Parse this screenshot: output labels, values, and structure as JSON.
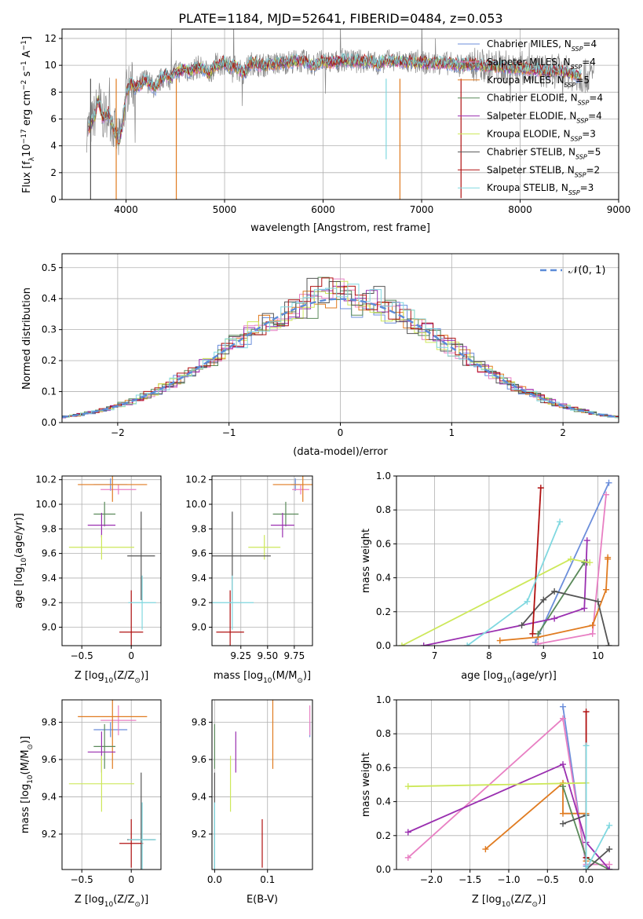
{
  "figure_title": "PLATE=1184, MJD=52641, FIBERID=0484, z=0.053",
  "models": [
    {
      "label": "Chabrier MILES, N",
      "sub": "SSP",
      "tail": "=4",
      "color": "#6b8edb"
    },
    {
      "label": "Salpeter MILES, N",
      "sub": "SSP",
      "tail": "=4",
      "color": "#e87fc3"
    },
    {
      "label": "Kroupa MILES, N",
      "sub": "SSP",
      "tail": "=5",
      "color": "#e07b20"
    },
    {
      "label": "Chabrier ELODIE, N",
      "sub": "SSP",
      "tail": "=4",
      "color": "#5a8a5a"
    },
    {
      "label": "Salpeter ELODIE, N",
      "sub": "SSP",
      "tail": "=4",
      "color": "#9a2fb0"
    },
    {
      "label": "Kroupa ELODIE, N",
      "sub": "SSP",
      "tail": "=3",
      "color": "#cde85a"
    },
    {
      "label": "Chabrier STELIB, N",
      "sub": "SSP",
      "tail": "=5",
      "color": "#555555"
    },
    {
      "label": "Salpeter STELIB, N",
      "sub": "SSP",
      "tail": "=2",
      "color": "#b01010"
    },
    {
      "label": "Kroupa STELIB, N",
      "sub": "SSP",
      "tail": "=3",
      "color": "#80d8e0"
    }
  ],
  "chart_data": [
    {
      "id": "spectrum",
      "type": "line",
      "xlabel": "wavelength [Angstrom, rest frame]",
      "ylabel_main": "Flux [f",
      "ylabel_sub": "λ",
      "ylabel_rest": "10",
      "ylabel_exp1": "−17",
      "ylabel_mid": " erg cm",
      "ylabel_exp2": "−2",
      "ylabel_mid2": " s",
      "ylabel_exp3": "−1",
      "ylabel_mid3": " A",
      "ylabel_exp4": "−1",
      "ylabel_end": "]",
      "xlim": [
        3350,
        9000
      ],
      "ylim": [
        0,
        12.7
      ],
      "xticks": [
        4000,
        5000,
        6000,
        7000,
        8000,
        9000
      ],
      "yticks": [
        0,
        2,
        4,
        6,
        8,
        10,
        12
      ],
      "data_color": "#888888",
      "model_profile": [
        [
          3620,
          5.3
        ],
        [
          3680,
          6.2
        ],
        [
          3720,
          7.5
        ],
        [
          3760,
          6.1
        ],
        [
          3820,
          6.5
        ],
        [
          3860,
          5.6
        ],
        [
          3900,
          4.8
        ],
        [
          3930,
          4.3
        ],
        [
          3970,
          5.8
        ],
        [
          4000,
          8.0
        ],
        [
          4050,
          8.6
        ],
        [
          4100,
          8.3
        ],
        [
          4150,
          8.6
        ],
        [
          4200,
          9.0
        ],
        [
          4260,
          8.5
        ],
        [
          4300,
          8.3
        ],
        [
          4350,
          8.9
        ],
        [
          4400,
          9.3
        ],
        [
          4450,
          9.0
        ],
        [
          4500,
          9.5
        ],
        [
          4550,
          9.6
        ],
        [
          4600,
          9.7
        ],
        [
          4650,
          9.5
        ],
        [
          4700,
          9.8
        ],
        [
          4750,
          9.9
        ],
        [
          4800,
          9.6
        ],
        [
          4850,
          9.4
        ],
        [
          4900,
          10.0
        ],
        [
          4950,
          10.1
        ],
        [
          5000,
          10.2
        ],
        [
          5050,
          9.8
        ],
        [
          5100,
          10.0
        ],
        [
          5150,
          9.6
        ],
        [
          5200,
          9.4
        ],
        [
          5250,
          10.1
        ],
        [
          5300,
          10.2
        ],
        [
          5350,
          10.0
        ],
        [
          5400,
          10.0
        ],
        [
          5500,
          10.1
        ],
        [
          5600,
          10.2
        ],
        [
          5700,
          10.3
        ],
        [
          5800,
          10.3
        ],
        [
          5900,
          10.0
        ],
        [
          6000,
          10.3
        ],
        [
          6100,
          10.2
        ],
        [
          6200,
          10.4
        ],
        [
          6300,
          10.3
        ],
        [
          6400,
          10.3
        ],
        [
          6500,
          10.3
        ],
        [
          6560,
          10.0
        ],
        [
          6600,
          10.3
        ],
        [
          6700,
          10.3
        ],
        [
          6800,
          10.3
        ],
        [
          6900,
          10.2
        ],
        [
          7000,
          10.2
        ],
        [
          7100,
          10.1
        ],
        [
          7200,
          10.2
        ],
        [
          7300,
          10.1
        ],
        [
          7400,
          10.0
        ],
        [
          7500,
          10.1
        ],
        [
          7600,
          10.0
        ],
        [
          7700,
          9.9
        ],
        [
          7800,
          9.9
        ],
        [
          7900,
          9.8
        ],
        [
          8000,
          9.8
        ],
        [
          8100,
          9.7
        ],
        [
          8200,
          9.6
        ],
        [
          8300,
          9.5
        ],
        [
          8400,
          9.6
        ],
        [
          8500,
          9.4
        ],
        [
          8600,
          9.2
        ]
      ]
    },
    {
      "id": "residuals",
      "type": "line",
      "xlabel": "(data-model)/error",
      "ylabel": "Normed distribution",
      "xlim": [
        -2.5,
        2.5
      ],
      "ylim": [
        0,
        0.545
      ],
      "xticks": [
        -2,
        -1,
        0,
        1,
        2
      ],
      "yticks": [
        0,
        0.1,
        0.2,
        0.3,
        0.4,
        0.5
      ],
      "legend_label": "𝒩(0, 1)",
      "normal_color": "#5b8bd8",
      "grid": true
    },
    {
      "id": "age_vs_Z",
      "type": "scatter",
      "xlabel": "Z [log",
      "xlabel_sub": "10",
      "xlabel_rest": "(Z/Z",
      "xlabel_sub2": "⊙",
      "xlabel_end": ")]",
      "ylabel": "age  [log",
      "ylabel_sub": "10",
      "ylabel_rest": "(age/yr)]",
      "xlim": [
        -0.7,
        0.3
      ],
      "ylim": [
        8.85,
        10.23
      ],
      "xticks": [
        -0.5,
        0.0
      ],
      "yticks": [
        9.0,
        9.2,
        9.4,
        9.6,
        9.8,
        10.0,
        10.2
      ],
      "points": [
        {
          "model": 0,
          "x": -0.21,
          "y": 10.16,
          "xerr": 0.17,
          "yerr": 0.05
        },
        {
          "model": 1,
          "x": -0.13,
          "y": 10.12,
          "xerr": 0.18,
          "yerr": 0.04
        },
        {
          "model": 2,
          "x": -0.19,
          "y": 10.16,
          "xerr": 0.35,
          "yerr": 0.14
        },
        {
          "model": 3,
          "x": -0.27,
          "y": 9.92,
          "xerr": 0.11,
          "yerr": 0.1
        },
        {
          "model": 4,
          "x": -0.3,
          "y": 9.83,
          "xerr": 0.14,
          "yerr": 0.1
        },
        {
          "model": 5,
          "x": -0.3,
          "y": 9.65,
          "xerr": 0.33,
          "yerr": 0.1
        },
        {
          "model": 6,
          "x": 0.1,
          "y": 9.58,
          "xerr": 0.14,
          "yerr": 0.36
        },
        {
          "model": 7,
          "x": 0.0,
          "y": 8.96,
          "xerr": 0.12,
          "yerr": 0.34
        },
        {
          "model": 8,
          "x": 0.11,
          "y": 9.2,
          "xerr": 0.14,
          "yerr": 0.22
        }
      ]
    },
    {
      "id": "age_vs_mass",
      "type": "scatter",
      "xlabel": "mass [log",
      "xlabel_sub": "10",
      "xlabel_rest": "(M/M",
      "xlabel_sub2": "⊙",
      "xlabel_end": ")]",
      "xlim": [
        8.98,
        9.92
      ],
      "ylim": [
        8.85,
        10.23
      ],
      "xticks": [
        9.25,
        9.5,
        9.75
      ],
      "xticklabels": [
        "9.25",
        "9.50",
        "9.75"
      ],
      "yticks": [
        9.0,
        9.2,
        9.4,
        9.6,
        9.8,
        10.0,
        10.2
      ],
      "points": [
        {
          "model": 0,
          "x": 9.76,
          "y": 10.16,
          "xerr": 0.04,
          "yerr": 0.05
        },
        {
          "model": 1,
          "x": 9.81,
          "y": 10.12,
          "xerr": 0.08,
          "yerr": 0.04
        },
        {
          "model": 2,
          "x": 9.83,
          "y": 10.16,
          "xerr": 0.28,
          "yerr": 0.14
        },
        {
          "model": 3,
          "x": 9.67,
          "y": 9.92,
          "xerr": 0.12,
          "yerr": 0.1
        },
        {
          "model": 4,
          "x": 9.64,
          "y": 9.83,
          "xerr": 0.11,
          "yerr": 0.1
        },
        {
          "model": 5,
          "x": 9.47,
          "y": 9.65,
          "xerr": 0.15,
          "yerr": 0.1
        },
        {
          "model": 6,
          "x": 9.17,
          "y": 9.58,
          "xerr": 0.36,
          "yerr": 0.36
        },
        {
          "model": 7,
          "x": 9.15,
          "y": 8.96,
          "xerr": 0.13,
          "yerr": 0.34
        },
        {
          "model": 8,
          "x": 9.17,
          "y": 9.2,
          "xerr": 0.2,
          "yerr": 0.22
        }
      ]
    },
    {
      "id": "massweight_vs_age",
      "type": "line",
      "xlabel": "age  [log",
      "xlabel_sub": "10",
      "xlabel_rest": "(age/yr)]",
      "ylabel": "mass weight",
      "xlim": [
        6.3,
        10.38
      ],
      "ylim": [
        0,
        1
      ],
      "xticks": [
        7,
        8,
        9,
        10
      ],
      "yticks": [
        0.0,
        0.2,
        0.4,
        0.6,
        0.8,
        1.0
      ],
      "series": [
        {
          "model": 0,
          "points": [
            [
              8.85,
              0.02
            ],
            [
              10.2,
              0.96
            ]
          ]
        },
        {
          "model": 1,
          "points": [
            [
              8.9,
              0.01
            ],
            [
              9.9,
              0.07
            ],
            [
              10.15,
              0.89
            ]
          ]
        },
        {
          "model": 2,
          "points": [
            [
              8.2,
              0.03
            ],
            [
              8.9,
              0.05
            ],
            [
              9.9,
              0.12
            ],
            [
              10.15,
              0.33
            ],
            [
              10.18,
              0.51
            ],
            [
              10.18,
              0.52
            ]
          ]
        },
        {
          "model": 3,
          "points": [
            [
              8.9,
              0.07
            ],
            [
              9.75,
              0.49
            ],
            [
              9.8,
              0.49
            ]
          ]
        },
        {
          "model": 4,
          "points": [
            [
              6.8,
              0.0
            ],
            [
              9.2,
              0.16
            ],
            [
              9.75,
              0.22
            ],
            [
              9.8,
              0.62
            ]
          ]
        },
        {
          "model": 5,
          "points": [
            [
              6.4,
              0.0
            ],
            [
              9.5,
              0.51
            ],
            [
              9.85,
              0.49
            ]
          ]
        },
        {
          "model": 6,
          "points": [
            [
              8.6,
              0.12
            ],
            [
              9.0,
              0.27
            ],
            [
              9.2,
              0.32
            ],
            [
              10.0,
              0.26
            ],
            [
              10.2,
              0.0
            ]
          ]
        },
        {
          "model": 7,
          "points": [
            [
              8.8,
              0.07
            ],
            [
              8.95,
              0.93
            ]
          ]
        },
        {
          "model": 8,
          "points": [
            [
              7.6,
              0.0
            ],
            [
              8.7,
              0.26
            ],
            [
              9.3,
              0.73
            ]
          ]
        }
      ]
    },
    {
      "id": "mass_vs_Z",
      "type": "scatter",
      "xlabel": "Z [log",
      "xlabel_sub": "10",
      "xlabel_rest": "(Z/Z",
      "xlabel_sub2": "⊙",
      "xlabel_end": ")]",
      "ylabel": "mass [log",
      "ylabel_sub": "10",
      "ylabel_rest": "(M/M",
      "ylabel_sub2": "⊙",
      "ylabel_end": ")]",
      "xlim": [
        -0.7,
        0.3
      ],
      "ylim": [
        9.01,
        9.92
      ],
      "xticks": [
        -0.5,
        0.0
      ],
      "yticks": [
        9.2,
        9.4,
        9.6,
        9.8
      ],
      "points": [
        {
          "model": 0,
          "x": -0.21,
          "y": 9.76,
          "xerr": 0.17,
          "yerr": 0.04
        },
        {
          "model": 1,
          "x": -0.13,
          "y": 9.81,
          "xerr": 0.18,
          "yerr": 0.08
        },
        {
          "model": 2,
          "x": -0.19,
          "y": 9.83,
          "xerr": 0.35,
          "yerr": 0.28
        },
        {
          "model": 3,
          "x": -0.27,
          "y": 9.67,
          "xerr": 0.11,
          "yerr": 0.12
        },
        {
          "model": 4,
          "x": -0.3,
          "y": 9.64,
          "xerr": 0.14,
          "yerr": 0.11
        },
        {
          "model": 5,
          "x": -0.3,
          "y": 9.47,
          "xerr": 0.33,
          "yerr": 0.15
        },
        {
          "model": 6,
          "x": 0.1,
          "y": 9.17,
          "xerr": 0.14,
          "yerr": 0.36
        },
        {
          "model": 7,
          "x": 0.0,
          "y": 9.15,
          "xerr": 0.12,
          "yerr": 0.13
        },
        {
          "model": 8,
          "x": 0.11,
          "y": 9.17,
          "xerr": 0.14,
          "yerr": 0.2
        }
      ]
    },
    {
      "id": "mass_vs_ebv",
      "type": "scatter",
      "xlabel": "E(B-V)",
      "xlim": [
        -0.005,
        0.185
      ],
      "ylim": [
        9.01,
        9.92
      ],
      "xticks": [
        0.0,
        0.1
      ],
      "xticklabels": [
        "0.0",
        "0.1"
      ],
      "yticks": [
        9.2,
        9.4,
        9.6,
        9.8
      ],
      "points": [
        {
          "model": 0,
          "x": 0.18,
          "y": 9.76,
          "yerr": 0.04
        },
        {
          "model": 1,
          "x": 0.18,
          "y": 9.81,
          "yerr": 0.08
        },
        {
          "model": 2,
          "x": 0.11,
          "y": 9.83,
          "yerr": 0.28
        },
        {
          "model": 3,
          "x": 0.0,
          "y": 9.67,
          "yerr": 0.12
        },
        {
          "model": 4,
          "x": 0.04,
          "y": 9.64,
          "yerr": 0.11
        },
        {
          "model": 5,
          "x": 0.03,
          "y": 9.47,
          "yerr": 0.15
        },
        {
          "model": 6,
          "x": 0.0,
          "y": 9.17,
          "yerr": 0.36
        },
        {
          "model": 7,
          "x": 0.09,
          "y": 9.15,
          "yerr": 0.13
        },
        {
          "model": 8,
          "x": 0.0,
          "y": 9.17,
          "yerr": 0.2
        }
      ]
    },
    {
      "id": "massweight_vs_Z",
      "type": "line",
      "xlabel": "Z [log",
      "xlabel_sub": "10",
      "xlabel_rest": "(Z/Z",
      "xlabel_sub2": "⊙",
      "xlabel_end": ")]",
      "ylabel": "mass weight",
      "xlim": [
        -2.45,
        0.42
      ],
      "ylim": [
        0,
        1
      ],
      "xticks": [
        -2.0,
        -1.5,
        -1.0,
        -0.5,
        0.0
      ],
      "xticklabels": [
        "−2.0",
        "−1.5",
        "−1.0",
        "−0.5",
        "0.0"
      ],
      "yticks": [
        0.0,
        0.2,
        0.4,
        0.6,
        0.8,
        1.0
      ],
      "series": [
        {
          "model": 0,
          "points": [
            [
              -0.3,
              0.96
            ],
            [
              0.0,
              0.02
            ]
          ]
        },
        {
          "model": 1,
          "points": [
            [
              -2.3,
              0.07
            ],
            [
              -0.3,
              0.89
            ],
            [
              0.0,
              0.03
            ],
            [
              0.3,
              0.03
            ]
          ]
        },
        {
          "model": 2,
          "points": [
            [
              -1.3,
              0.12
            ],
            [
              -0.3,
              0.51
            ],
            [
              -0.3,
              0.33
            ],
            [
              0.0,
              0.33
            ],
            [
              0.0,
              0.05
            ]
          ]
        },
        {
          "model": 3,
          "points": [
            [
              -0.3,
              0.49
            ],
            [
              0.0,
              0.07
            ],
            [
              0.3,
              0.0
            ]
          ]
        },
        {
          "model": 4,
          "points": [
            [
              -2.3,
              0.22
            ],
            [
              -0.3,
              0.62
            ],
            [
              0.0,
              0.16
            ],
            [
              0.3,
              0.0
            ]
          ]
        },
        {
          "model": 5,
          "points": [
            [
              -2.3,
              0.49
            ],
            [
              0.0,
              0.51
            ]
          ]
        },
        {
          "model": 6,
          "points": [
            [
              -0.3,
              0.27
            ],
            [
              0.0,
              0.32
            ],
            [
              0.0,
              0.0
            ],
            [
              0.3,
              0.12
            ]
          ]
        },
        {
          "model": 7,
          "points": [
            [
              0.0,
              0.93
            ],
            [
              0.0,
              0.07
            ]
          ]
        },
        {
          "model": 8,
          "points": [
            [
              0.0,
              0.73
            ],
            [
              0.0,
              0.0
            ],
            [
              0.3,
              0.26
            ]
          ]
        }
      ]
    }
  ]
}
